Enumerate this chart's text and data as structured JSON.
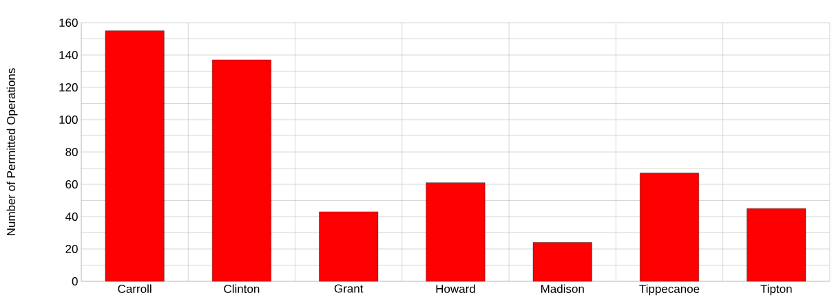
{
  "chart_data": {
    "type": "bar",
    "ylabel": "Number of Permitted Operations",
    "categories": [
      "Carroll",
      "Clinton",
      "Grant",
      "Howard",
      "Madison",
      "Tippecanoe",
      "Tipton"
    ],
    "values": [
      155,
      137,
      43,
      61,
      24,
      67,
      45
    ],
    "color": "#ff0000",
    "ylim": [
      0,
      160
    ],
    "yticks": [
      0,
      20,
      40,
      60,
      80,
      100,
      120,
      140,
      160
    ],
    "grid": true
  }
}
